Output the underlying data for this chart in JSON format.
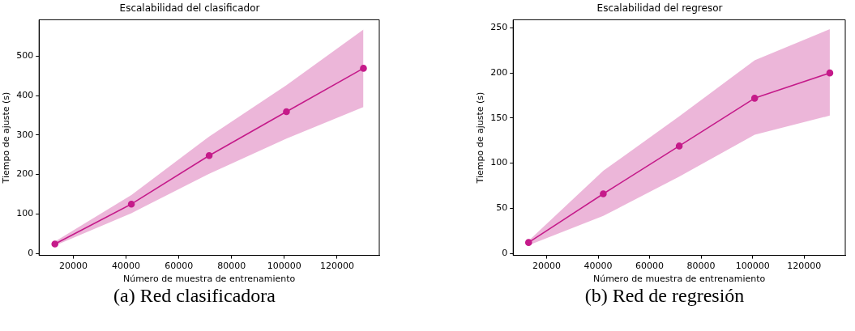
{
  "chart_data": [
    {
      "type": "line",
      "title": "Escalabilidad del clasificador",
      "xlabel": "Número de muestra de entrenamiento",
      "ylabel": "Tiempo de ajuste (s)",
      "x": [
        13000,
        42000,
        71500,
        100800,
        130000
      ],
      "series": [
        {
          "color": "#c51b8a",
          "values": [
            24,
            125,
            248,
            359,
            469
          ],
          "lower": [
            20,
            102,
            202,
            291,
            371
          ],
          "upper": [
            30,
            148,
            296,
            426,
            567
          ]
        }
      ],
      "xlim": [
        7000,
        136000
      ],
      "xticks": [
        20000,
        40000,
        60000,
        80000,
        100000,
        120000
      ],
      "ylim": [
        -5,
        592
      ],
      "yticks": [
        0,
        100,
        200,
        300,
        400,
        500
      ],
      "marker": "circle",
      "line_style": "solid",
      "grid": false,
      "legend": false,
      "annotations": [
        "(a) Red clasificadora"
      ]
    },
    {
      "type": "line",
      "title": "Escalabilidad del regresor",
      "xlabel": "Número de muestra de entrenamiento",
      "ylabel": "Tiempo de ajuste (s)",
      "x": [
        13000,
        42000,
        71500,
        100800,
        130000
      ],
      "series": [
        {
          "color": "#c51b8a",
          "values": [
            12,
            66,
            119,
            172,
            200
          ],
          "lower": [
            9,
            41.5,
            85,
            131.6,
            152.7
          ],
          "upper": [
            14,
            91.5,
            152,
            214,
            248.6
          ]
        }
      ],
      "xlim": [
        7000,
        136000
      ],
      "xticks": [
        20000,
        40000,
        60000,
        80000,
        100000,
        120000
      ],
      "ylim": [
        -2.3,
        259
      ],
      "yticks": [
        0,
        50,
        100,
        150,
        200,
        250
      ],
      "marker": "circle",
      "line_style": "solid",
      "grid": false,
      "legend": false,
      "annotations": [
        "(b) Red de regresión"
      ]
    }
  ]
}
